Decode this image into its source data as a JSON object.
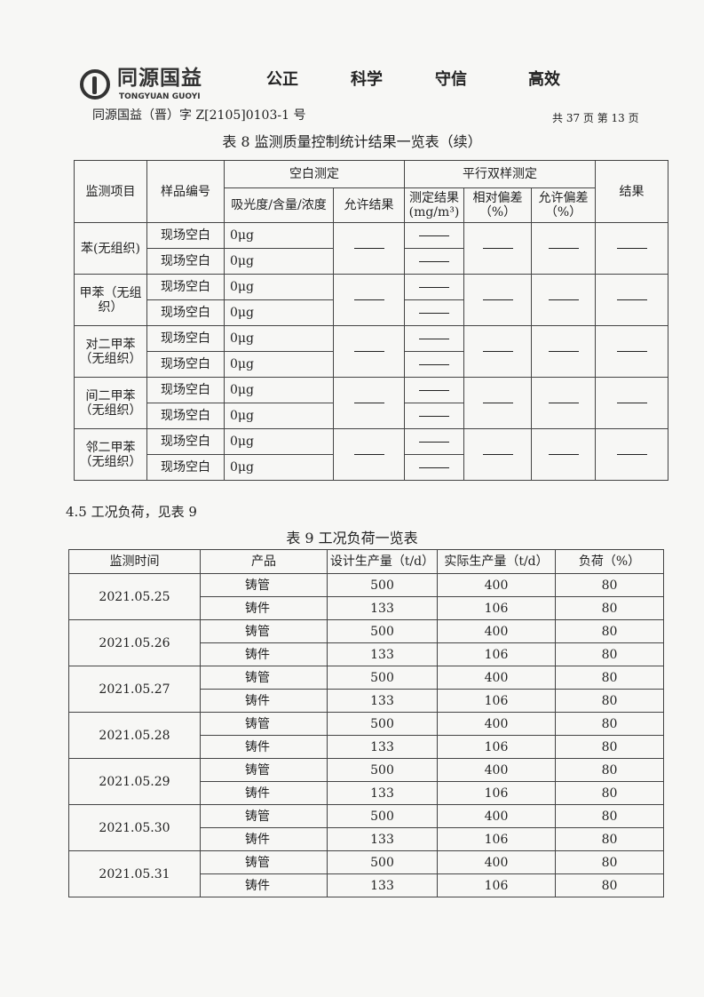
{
  "header": {
    "logo_cn": "同源国益",
    "logo_en": "TONGYUAN GUOYI",
    "motto": [
      "公正",
      "科学",
      "守信",
      "高效"
    ],
    "doc_number": "同源国益（晋）字 Z[2105]0103-1 号",
    "page_info": "共 37 页  第 13 页"
  },
  "table8": {
    "caption": "表 8 监测质量控制统计结果一览表（续）",
    "headers": {
      "item": "监测项目",
      "sample": "样品编号",
      "blank": "空白测定",
      "parallel": "平行双样测定",
      "result": "结果",
      "absorbance": "吸光度/含量/浓度",
      "allowed_result": "允许结果",
      "measured": "测定结果",
      "measured_unit": "(mg/m³)",
      "rel_dev": "相对偏差（%）",
      "allowed_dev": "允许偏差（%）"
    },
    "groups": [
      {
        "item": "苯(无组织)",
        "rows": [
          {
            "sample": "现场空白",
            "value": "0μg"
          },
          {
            "sample": "现场空白",
            "value": "0μg"
          }
        ]
      },
      {
        "item": "甲苯（无组织）",
        "rows": [
          {
            "sample": "现场空白",
            "value": "0μg"
          },
          {
            "sample": "现场空白",
            "value": "0μg"
          }
        ]
      },
      {
        "item": "对二甲苯（无组织）",
        "rows": [
          {
            "sample": "现场空白",
            "value": "0μg"
          },
          {
            "sample": "现场空白",
            "value": "0μg"
          }
        ]
      },
      {
        "item": "间二甲苯（无组织）",
        "rows": [
          {
            "sample": "现场空白",
            "value": "0μg"
          },
          {
            "sample": "现场空白",
            "value": "0μg"
          }
        ]
      },
      {
        "item": "邻二甲苯（无组织）",
        "rows": [
          {
            "sample": "现场空白",
            "value": "0μg"
          },
          {
            "sample": "现场空白",
            "value": "0μg"
          }
        ]
      }
    ]
  },
  "section_4_5": "4.5 工况负荷，见表 9",
  "table9": {
    "caption": "表 9 工况负荷一览表",
    "headers": [
      "监测时间",
      "产品",
      "设计生产量（t/d）",
      "实际生产量（t/d）",
      "负荷（%）"
    ],
    "days": [
      {
        "date": "2021.05.25",
        "rows": [
          [
            "铸管",
            "500",
            "400",
            "80"
          ],
          [
            "铸件",
            "133",
            "106",
            "80"
          ]
        ]
      },
      {
        "date": "2021.05.26",
        "rows": [
          [
            "铸管",
            "500",
            "400",
            "80"
          ],
          [
            "铸件",
            "133",
            "106",
            "80"
          ]
        ]
      },
      {
        "date": "2021.05.27",
        "rows": [
          [
            "铸管",
            "500",
            "400",
            "80"
          ],
          [
            "铸件",
            "133",
            "106",
            "80"
          ]
        ]
      },
      {
        "date": "2021.05.28",
        "rows": [
          [
            "铸管",
            "500",
            "400",
            "80"
          ],
          [
            "铸件",
            "133",
            "106",
            "80"
          ]
        ]
      },
      {
        "date": "2021.05.29",
        "rows": [
          [
            "铸管",
            "500",
            "400",
            "80"
          ],
          [
            "铸件",
            "133",
            "106",
            "80"
          ]
        ]
      },
      {
        "date": "2021.05.30",
        "rows": [
          [
            "铸管",
            "500",
            "400",
            "80"
          ],
          [
            "铸件",
            "133",
            "106",
            "80"
          ]
        ]
      },
      {
        "date": "2021.05.31",
        "rows": [
          [
            "铸管",
            "500",
            "400",
            "80"
          ],
          [
            "铸件",
            "133",
            "106",
            "80"
          ]
        ]
      }
    ]
  }
}
